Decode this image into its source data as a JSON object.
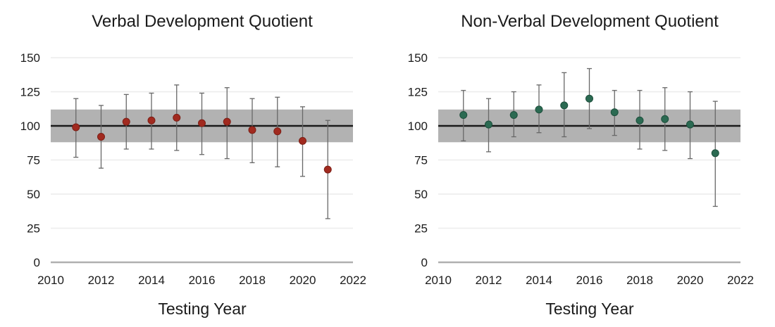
{
  "page": {
    "background": "#ffffff"
  },
  "axes_shared": {
    "x_label": "Testing Year",
    "x_ticks": [
      2010,
      2012,
      2014,
      2016,
      2018,
      2020,
      2022
    ],
    "y_ticks": [
      0,
      25,
      50,
      75,
      100,
      125,
      150
    ],
    "xlim": [
      2010,
      2022
    ],
    "ylim": [
      0,
      150
    ],
    "reference_line": 100,
    "normal_band": {
      "low": 88,
      "high": 112,
      "color": "#b2b2b2"
    },
    "grid_color": "#ececec",
    "baseline_color": "#b0b0b0",
    "reference_line_color": "#1a1a1a",
    "error_bar_color": "#686868"
  },
  "chart_data": [
    {
      "type": "scatter",
      "title": "Verbal Development Quotient",
      "xlabel": "Testing Year",
      "ylabel": "",
      "xlim": [
        2010,
        2022
      ],
      "ylim": [
        0,
        150
      ],
      "legend": "none",
      "grid": "horizontal",
      "point_color": "#a12a1f",
      "point_stroke": "#7c1f16",
      "x": [
        2011,
        2012,
        2013,
        2014,
        2015,
        2016,
        2017,
        2018,
        2019,
        2020,
        2021
      ],
      "y": [
        99,
        92,
        103,
        104,
        106,
        102,
        103,
        97,
        96,
        89,
        68
      ],
      "err_low": [
        77,
        69,
        83,
        83,
        82,
        79,
        76,
        73,
        70,
        63,
        32
      ],
      "err_high": [
        120,
        115,
        123,
        124,
        130,
        124,
        128,
        120,
        121,
        114,
        104
      ]
    },
    {
      "type": "scatter",
      "title": "Non-Verbal Development Quotient",
      "xlabel": "Testing Year",
      "ylabel": "",
      "xlim": [
        2010,
        2022
      ],
      "ylim": [
        0,
        150
      ],
      "legend": "none",
      "grid": "horizontal",
      "point_color": "#2b6a52",
      "point_stroke": "#1d4f3c",
      "x": [
        2011,
        2012,
        2013,
        2014,
        2015,
        2016,
        2017,
        2018,
        2019,
        2020,
        2021
      ],
      "y": [
        108,
        101,
        108,
        112,
        115,
        120,
        110,
        104,
        105,
        101,
        80
      ],
      "err_low": [
        89,
        81,
        92,
        95,
        92,
        98,
        93,
        83,
        82,
        76,
        41
      ],
      "err_high": [
        126,
        120,
        125,
        130,
        139,
        142,
        126,
        126,
        128,
        125,
        118
      ]
    }
  ]
}
